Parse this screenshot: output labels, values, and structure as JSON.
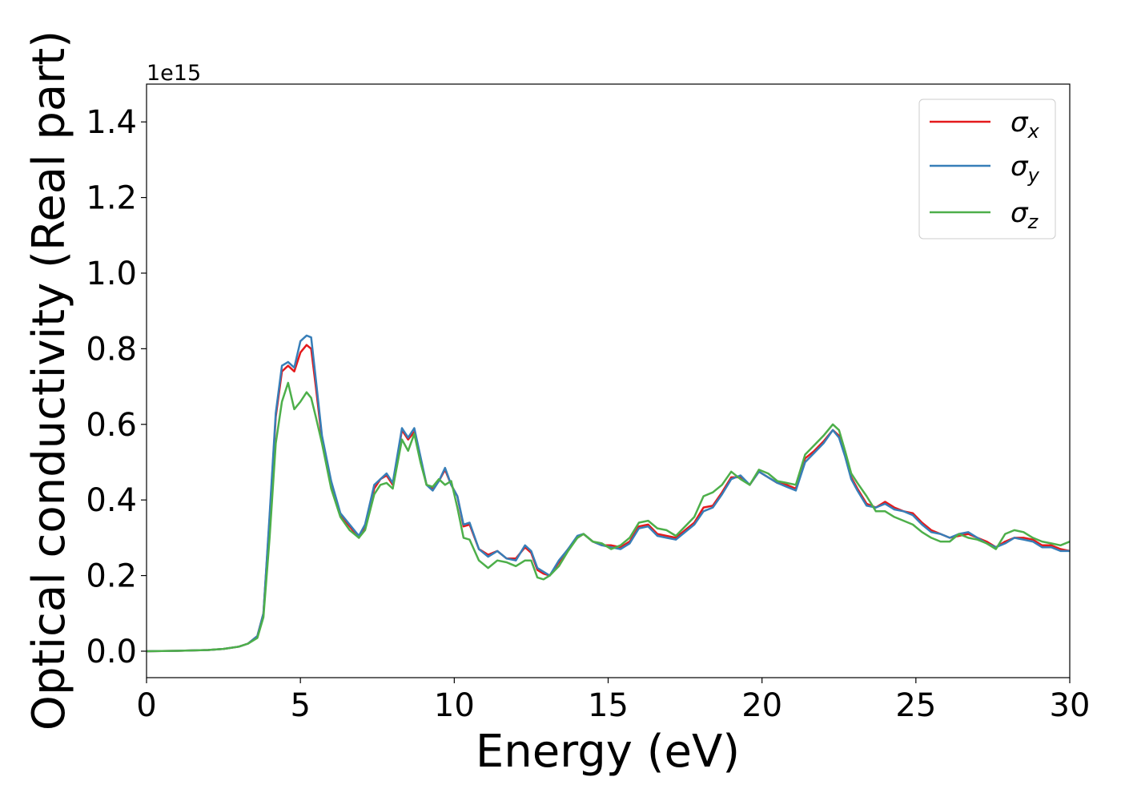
{
  "chart_data": {
    "type": "line",
    "title": "",
    "xlabel": "Energy (eV)",
    "ylabel": "Optical conductivity (Real part)",
    "offset_text": "1e15",
    "xlim": [
      0,
      30
    ],
    "ylim": [
      -0.07,
      1.5
    ],
    "x_ticks": [
      0,
      5,
      10,
      15,
      20,
      25,
      30
    ],
    "x_tick_labels": [
      "0",
      "5",
      "10",
      "15",
      "20",
      "25",
      "30"
    ],
    "y_ticks": [
      0.0,
      0.2,
      0.4,
      0.6,
      0.8,
      1.0,
      1.2,
      1.4
    ],
    "y_tick_labels": [
      "0.0",
      "0.2",
      "0.4",
      "0.6",
      "0.8",
      "1.0",
      "1.2",
      "1.4"
    ],
    "grid": false,
    "legend_position": "top-right",
    "x": [
      0,
      1,
      2,
      2.5,
      3,
      3.3,
      3.6,
      3.8,
      4.0,
      4.2,
      4.4,
      4.6,
      4.8,
      5.0,
      5.2,
      5.35,
      5.5,
      5.7,
      6.0,
      6.3,
      6.6,
      6.9,
      7.1,
      7.4,
      7.6,
      7.8,
      8.0,
      8.3,
      8.5,
      8.7,
      8.9,
      9.1,
      9.3,
      9.5,
      9.7,
      9.9,
      10.1,
      10.3,
      10.5,
      10.8,
      11.1,
      11.4,
      11.7,
      12.0,
      12.3,
      12.5,
      12.7,
      12.9,
      13.1,
      13.4,
      13.7,
      14.0,
      14.2,
      14.5,
      14.8,
      15.1,
      15.4,
      15.7,
      16.0,
      16.3,
      16.6,
      16.9,
      17.2,
      17.5,
      17.8,
      18.1,
      18.4,
      18.7,
      19.0,
      19.3,
      19.6,
      19.9,
      20.2,
      20.5,
      20.8,
      21.1,
      21.4,
      21.7,
      22.0,
      22.3,
      22.5,
      22.7,
      22.9,
      23.1,
      23.4,
      23.7,
      24.0,
      24.3,
      24.6,
      24.9,
      25.2,
      25.5,
      25.8,
      26.1,
      26.4,
      26.7,
      27.0,
      27.3,
      27.6,
      27.9,
      28.2,
      28.5,
      28.8,
      29.1,
      29.4,
      29.7,
      30.0
    ],
    "series": [
      {
        "name": "σx",
        "color": "#e41a1c",
        "values": [
          0.0,
          0.001,
          0.003,
          0.006,
          0.012,
          0.02,
          0.04,
          0.1,
          0.35,
          0.62,
          0.74,
          0.755,
          0.74,
          0.79,
          0.81,
          0.8,
          0.7,
          0.56,
          0.44,
          0.36,
          0.33,
          0.3,
          0.33,
          0.43,
          0.455,
          0.465,
          0.44,
          0.585,
          0.56,
          0.58,
          0.51,
          0.44,
          0.43,
          0.45,
          0.48,
          0.44,
          0.41,
          0.33,
          0.335,
          0.27,
          0.255,
          0.265,
          0.245,
          0.245,
          0.275,
          0.26,
          0.215,
          0.205,
          0.2,
          0.235,
          0.27,
          0.3,
          0.31,
          0.29,
          0.28,
          0.28,
          0.275,
          0.29,
          0.33,
          0.335,
          0.31,
          0.305,
          0.3,
          0.32,
          0.34,
          0.38,
          0.385,
          0.42,
          0.46,
          0.46,
          0.44,
          0.475,
          0.46,
          0.445,
          0.44,
          0.43,
          0.51,
          0.53,
          0.555,
          0.585,
          0.57,
          0.52,
          0.46,
          0.43,
          0.39,
          0.38,
          0.395,
          0.38,
          0.37,
          0.365,
          0.34,
          0.32,
          0.31,
          0.3,
          0.305,
          0.31,
          0.3,
          0.29,
          0.275,
          0.29,
          0.3,
          0.3,
          0.295,
          0.28,
          0.28,
          0.27,
          0.265
        ]
      },
      {
        "name": "σy",
        "color": "#377eb8",
        "values": [
          0.0,
          0.001,
          0.003,
          0.006,
          0.012,
          0.02,
          0.04,
          0.1,
          0.36,
          0.63,
          0.755,
          0.765,
          0.75,
          0.82,
          0.835,
          0.83,
          0.72,
          0.57,
          0.45,
          0.365,
          0.335,
          0.305,
          0.335,
          0.44,
          0.455,
          0.47,
          0.445,
          0.59,
          0.565,
          0.59,
          0.515,
          0.44,
          0.425,
          0.45,
          0.485,
          0.44,
          0.41,
          0.335,
          0.34,
          0.27,
          0.25,
          0.265,
          0.245,
          0.24,
          0.28,
          0.265,
          0.22,
          0.21,
          0.2,
          0.24,
          0.27,
          0.305,
          0.31,
          0.29,
          0.28,
          0.275,
          0.27,
          0.285,
          0.325,
          0.33,
          0.305,
          0.3,
          0.295,
          0.315,
          0.335,
          0.37,
          0.38,
          0.415,
          0.455,
          0.465,
          0.44,
          0.475,
          0.46,
          0.445,
          0.435,
          0.425,
          0.5,
          0.525,
          0.55,
          0.585,
          0.565,
          0.515,
          0.455,
          0.425,
          0.385,
          0.38,
          0.39,
          0.375,
          0.37,
          0.36,
          0.335,
          0.315,
          0.31,
          0.3,
          0.31,
          0.315,
          0.3,
          0.285,
          0.275,
          0.285,
          0.3,
          0.295,
          0.29,
          0.275,
          0.275,
          0.265,
          0.265
        ]
      },
      {
        "name": "σz",
        "color": "#4daf4a",
        "values": [
          0.0,
          0.001,
          0.003,
          0.006,
          0.012,
          0.02,
          0.035,
          0.09,
          0.3,
          0.55,
          0.66,
          0.71,
          0.64,
          0.66,
          0.685,
          0.67,
          0.62,
          0.55,
          0.43,
          0.355,
          0.32,
          0.3,
          0.32,
          0.415,
          0.44,
          0.445,
          0.43,
          0.56,
          0.53,
          0.575,
          0.5,
          0.44,
          0.435,
          0.455,
          0.44,
          0.45,
          0.38,
          0.3,
          0.295,
          0.24,
          0.22,
          0.24,
          0.235,
          0.225,
          0.24,
          0.24,
          0.195,
          0.19,
          0.2,
          0.225,
          0.265,
          0.3,
          0.31,
          0.29,
          0.285,
          0.27,
          0.28,
          0.3,
          0.34,
          0.345,
          0.325,
          0.32,
          0.305,
          0.33,
          0.355,
          0.41,
          0.42,
          0.44,
          0.475,
          0.455,
          0.44,
          0.48,
          0.47,
          0.45,
          0.445,
          0.44,
          0.52,
          0.545,
          0.57,
          0.6,
          0.585,
          0.53,
          0.47,
          0.445,
          0.41,
          0.37,
          0.37,
          0.355,
          0.345,
          0.335,
          0.315,
          0.3,
          0.29,
          0.29,
          0.31,
          0.3,
          0.295,
          0.285,
          0.27,
          0.31,
          0.32,
          0.315,
          0.3,
          0.29,
          0.285,
          0.28,
          0.29
        ]
      }
    ]
  }
}
